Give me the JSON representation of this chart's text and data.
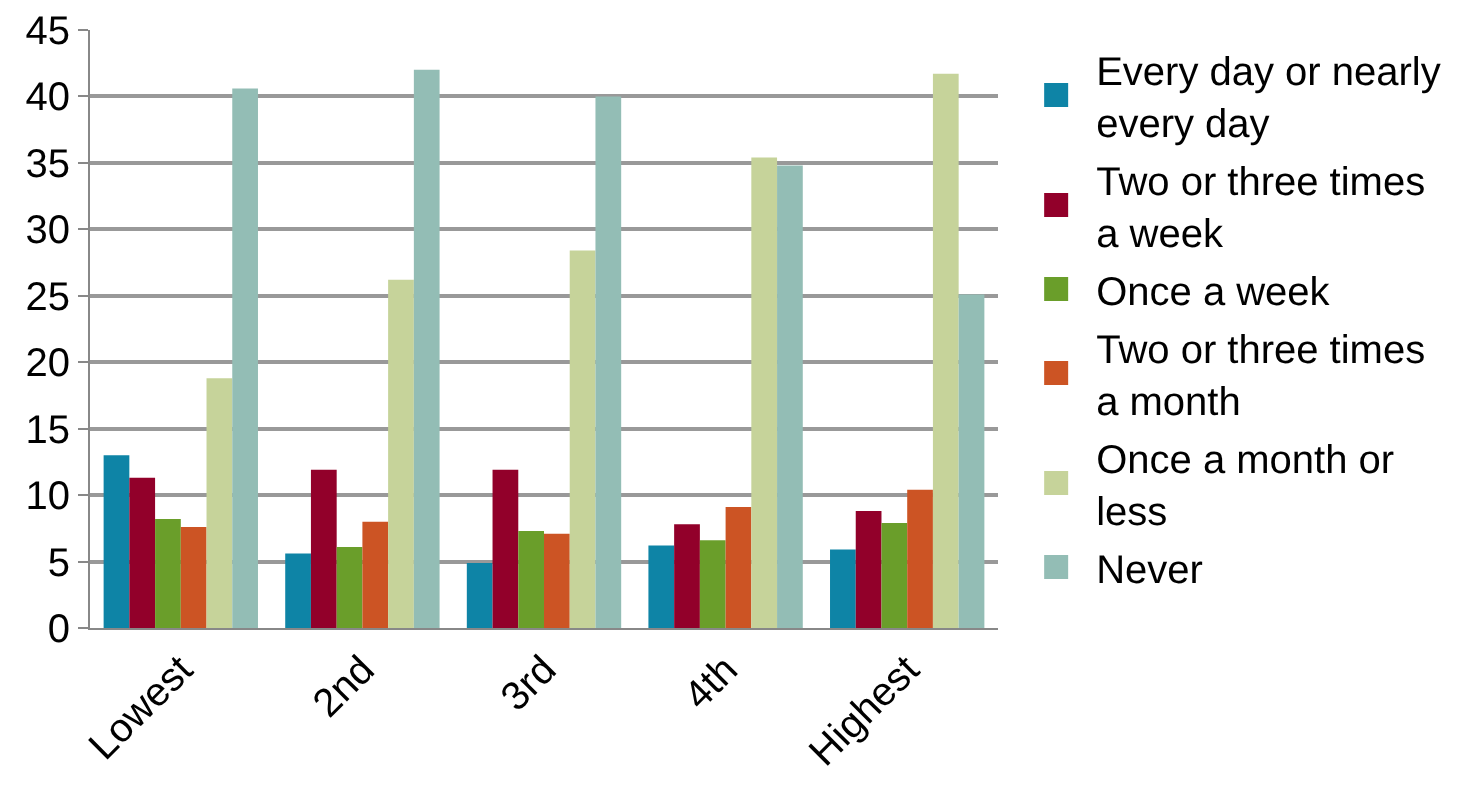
{
  "chart_data": {
    "type": "bar",
    "categories": [
      "Lowest",
      "2nd",
      "3rd",
      "4th",
      "Highest"
    ],
    "series": [
      {
        "name": "Every day or nearly every day",
        "color": "#0e84a6",
        "values": [
          13,
          5.6,
          4.9,
          6.2,
          5.9
        ]
      },
      {
        "name": "Two or three times a week",
        "color": "#92002a",
        "values": [
          11.3,
          11.9,
          11.9,
          7.8,
          8.8
        ]
      },
      {
        "name": "Once a week",
        "color": "#6a9e2a",
        "values": [
          8.2,
          6.1,
          7.3,
          6.6,
          7.9
        ]
      },
      {
        "name": "Two or three times a month",
        "color": "#cc5424",
        "values": [
          7.6,
          8,
          7.1,
          9.1,
          10.4
        ]
      },
      {
        "name": "Once a month or less",
        "color": "#c6d39a",
        "values": [
          18.8,
          26.2,
          28.4,
          35.4,
          41.7
        ]
      },
      {
        "name": "Never",
        "color": "#93bdb5",
        "values": [
          40.6,
          42,
          40,
          34.8,
          25.1
        ]
      }
    ],
    "ylim": [
      0,
      45
    ],
    "yticks": [
      0,
      5,
      10,
      15,
      20,
      25,
      30,
      35,
      40,
      45
    ],
    "grid": "y",
    "legend": "right"
  }
}
